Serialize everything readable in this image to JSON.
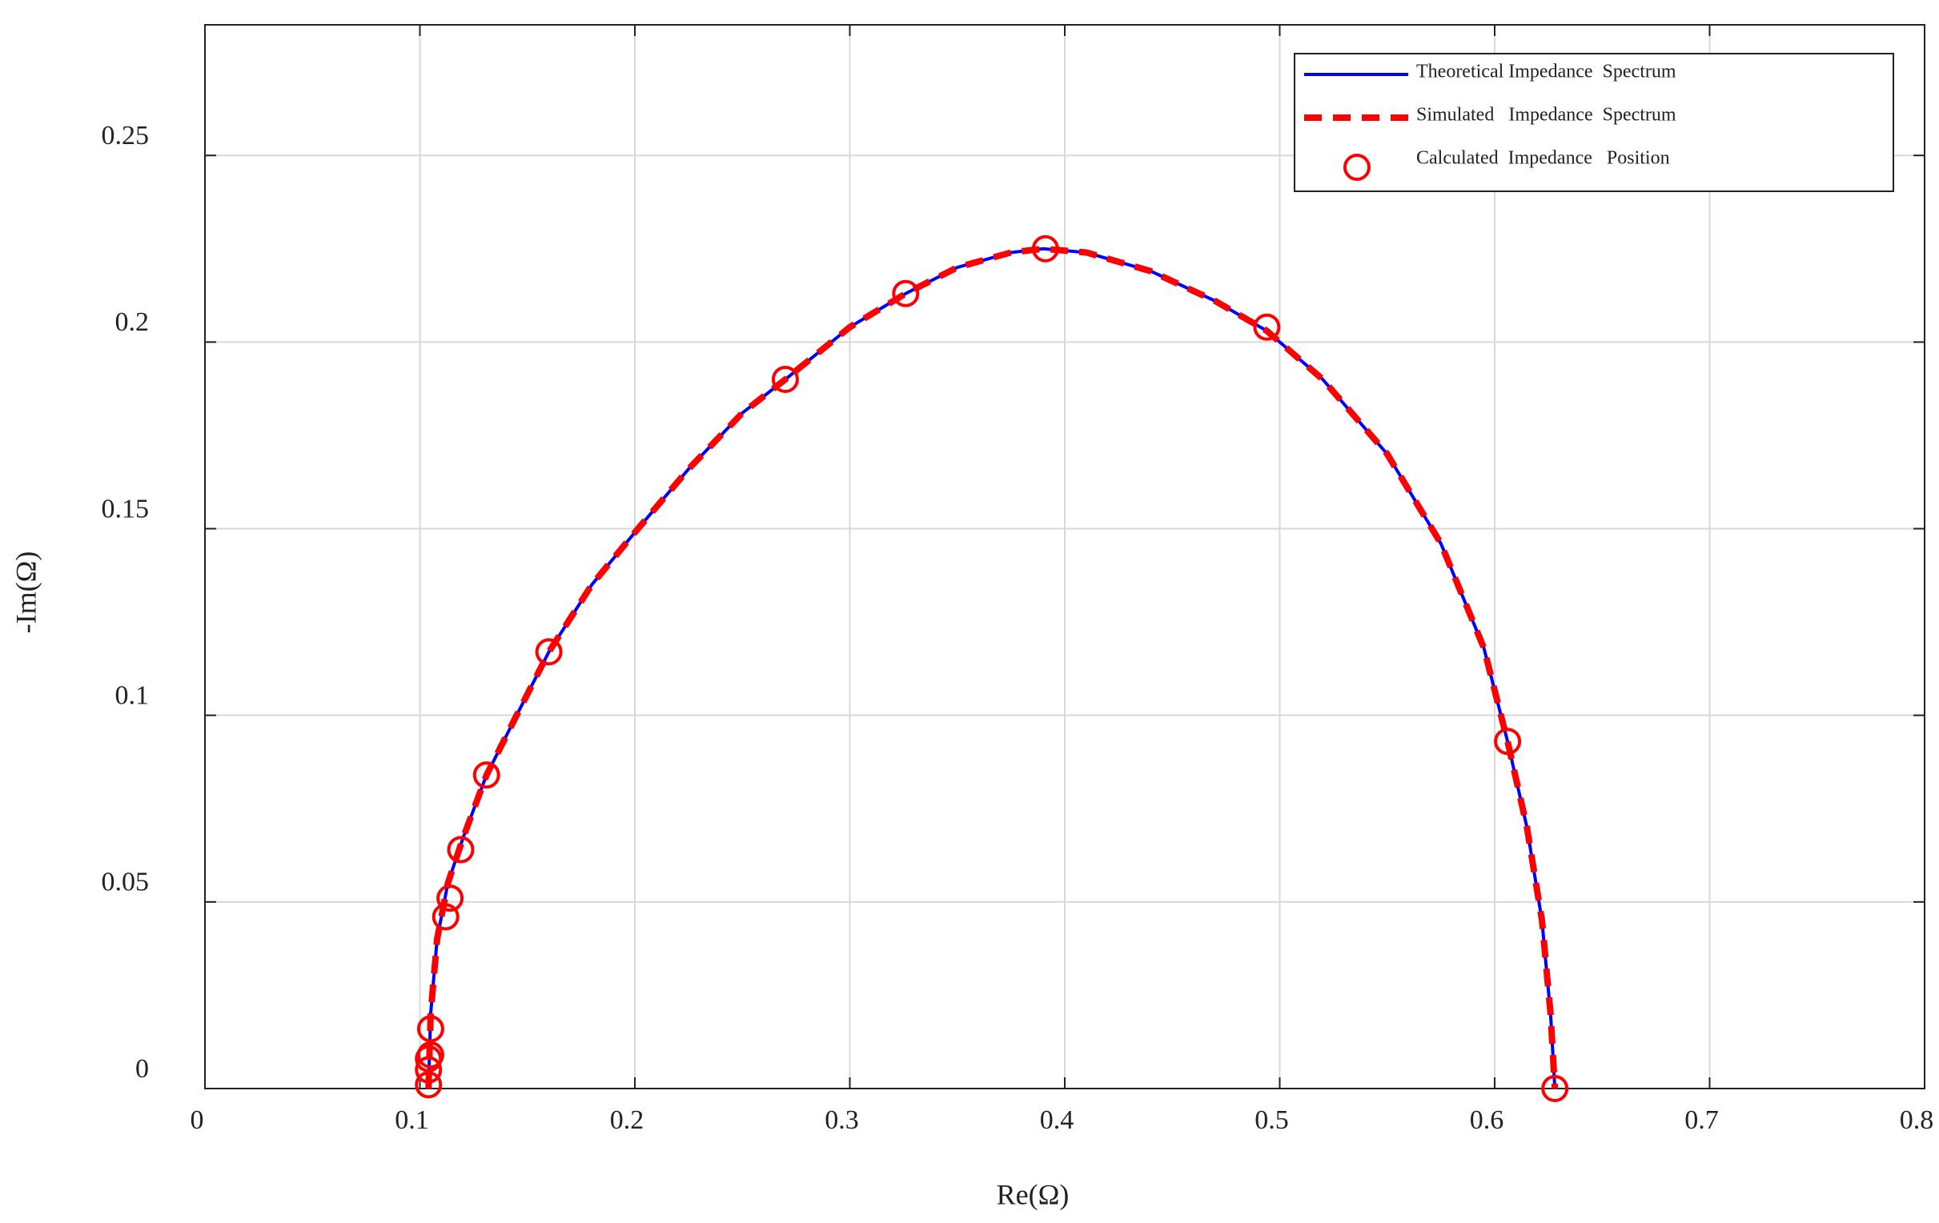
{
  "chart_data": {
    "type": "line",
    "xlabel": "Re(Ω)",
    "ylabel": "-Im(Ω)",
    "xlim": [
      0,
      0.8
    ],
    "xticks": [
      0,
      0.1,
      0.2,
      0.3,
      0.4,
      0.5,
      0.6,
      0.7,
      0.8
    ],
    "ylim": [
      0,
      0.285
    ],
    "yticks": [
      0,
      0.05,
      0.1,
      0.15,
      0.2,
      0.25
    ],
    "grid": true,
    "legend": "upper right",
    "series": [
      {
        "name": "Theoretical Impedance  Spectrum",
        "type": "line",
        "color": "#0000ff",
        "x": [
          0.104,
          0.105,
          0.108,
          0.113,
          0.12,
          0.131,
          0.145,
          0.16,
          0.18,
          0.2,
          0.225,
          0.25,
          0.27,
          0.3,
          0.326,
          0.35,
          0.375,
          0.39,
          0.41,
          0.44,
          0.47,
          0.494,
          0.52,
          0.55,
          0.575,
          0.595,
          0.606,
          0.615,
          0.622,
          0.626,
          0.628
        ],
        "values": [
          0,
          0.02,
          0.04,
          0.055,
          0.067,
          0.084,
          0.1,
          0.117,
          0.135,
          0.149,
          0.166,
          0.181,
          0.19,
          0.204,
          0.213,
          0.22,
          0.224,
          0.225,
          0.224,
          0.219,
          0.211,
          0.203,
          0.19,
          0.17,
          0.146,
          0.118,
          0.093,
          0.07,
          0.045,
          0.02,
          0
        ]
      },
      {
        "name": "Simulated   Impedance  Spectrum",
        "type": "line",
        "dashed": true,
        "color": "#ff0000",
        "x": [
          0.104,
          0.105,
          0.108,
          0.113,
          0.12,
          0.131,
          0.145,
          0.16,
          0.18,
          0.2,
          0.225,
          0.25,
          0.27,
          0.3,
          0.326,
          0.35,
          0.375,
          0.39,
          0.41,
          0.44,
          0.47,
          0.494,
          0.52,
          0.55,
          0.575,
          0.595,
          0.606,
          0.615,
          0.622,
          0.626,
          0.628
        ],
        "values": [
          0,
          0.02,
          0.04,
          0.055,
          0.067,
          0.084,
          0.1,
          0.117,
          0.135,
          0.149,
          0.166,
          0.181,
          0.19,
          0.204,
          0.213,
          0.22,
          0.224,
          0.225,
          0.224,
          0.219,
          0.211,
          0.203,
          0.19,
          0.17,
          0.146,
          0.118,
          0.093,
          0.07,
          0.045,
          0.02,
          0
        ]
      },
      {
        "name": "Calculated  Impedance   Position",
        "type": "scatter",
        "color": "#ff0000",
        "x": [
          0.104,
          0.104,
          0.104,
          0.105,
          0.105,
          0.112,
          0.114,
          0.119,
          0.131,
          0.16,
          0.27,
          0.326,
          0.391,
          0.494,
          0.606,
          0.628
        ],
        "values": [
          0.001,
          0.005,
          0.008,
          0.009,
          0.016,
          0.046,
          0.051,
          0.064,
          0.084,
          0.117,
          0.19,
          0.213,
          0.225,
          0.204,
          0.093,
          0
        ]
      }
    ]
  }
}
